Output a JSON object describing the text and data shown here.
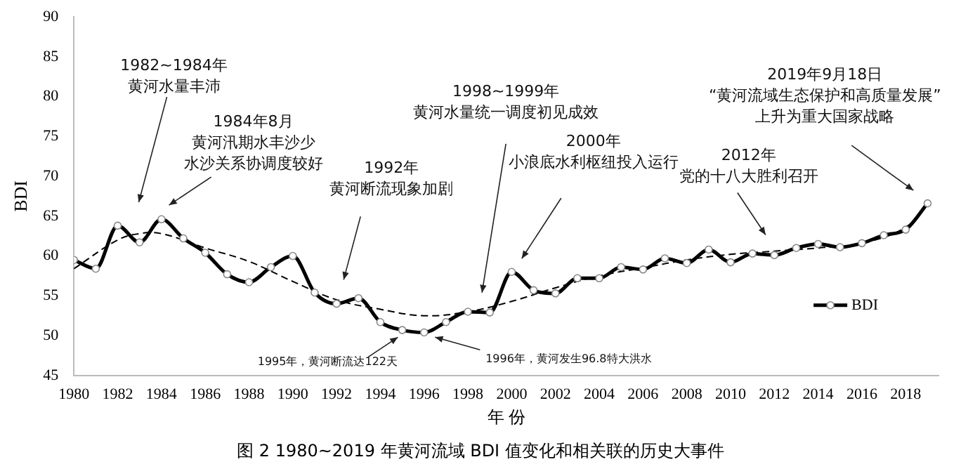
{
  "chart_data": {
    "type": "line",
    "title": "图 2 1980~2019 年黄河流域 BDI 值变化和相关联的历史大事件",
    "xlabel": "年 份",
    "ylabel": "BDI",
    "x": [
      1980,
      1981,
      1982,
      1983,
      1984,
      1985,
      1986,
      1987,
      1988,
      1989,
      1990,
      1991,
      1992,
      1993,
      1994,
      1995,
      1996,
      1997,
      1998,
      1999,
      2000,
      2001,
      2002,
      2003,
      2004,
      2005,
      2006,
      2007,
      2008,
      2009,
      2010,
      2011,
      2012,
      2013,
      2014,
      2015,
      2016,
      2017,
      2018,
      2019
    ],
    "series": [
      {
        "name": "BDI",
        "color": "#000000",
        "marker": "circle",
        "line_style": "solid",
        "values": [
          59.5,
          58.4,
          63.8,
          61.7,
          64.6,
          62.2,
          60.4,
          57.7,
          56.7,
          58.6,
          60.0,
          55.4,
          54.0,
          54.7,
          51.7,
          50.7,
          50.4,
          51.7,
          53.0,
          52.9,
          58.0,
          55.7,
          55.3,
          57.2,
          57.2,
          58.6,
          58.3,
          59.7,
          59.1,
          60.8,
          59.2,
          60.3,
          60.1,
          61.0,
          61.5,
          61.1,
          61.6,
          62.6,
          63.3,
          66.6
        ]
      },
      {
        "type": "line",
        "color": "#000000",
        "marker": "none",
        "line_style": "dashed",
        "x": [
          1980,
          1982,
          1983,
          1984,
          1986,
          1988,
          1990,
          1992,
          1994,
          1996,
          1998,
          2000,
          2002,
          2004,
          2006,
          2008,
          2010,
          2012,
          2014,
          2016,
          2018,
          2019
        ],
        "values": [
          58.4,
          62.0,
          62.8,
          62.8,
          61.0,
          59.3,
          56.8,
          54.5,
          53.3,
          52.5,
          53.0,
          54.3,
          56.0,
          57.5,
          58.5,
          59.5,
          60.2,
          60.6,
          61.0,
          61.6,
          63.6,
          66.6
        ]
      }
    ],
    "xlim": [
      1980,
      2019.5
    ],
    "xticks": [
      1980,
      1982,
      1984,
      1986,
      1988,
      1990,
      1992,
      1994,
      1996,
      1998,
      2000,
      2002,
      2004,
      2006,
      2008,
      2010,
      2012,
      2014,
      2016,
      2018
    ],
    "ylim": [
      45,
      90
    ],
    "yticks": [
      45,
      50,
      55,
      60,
      65,
      70,
      75,
      80,
      85,
      90
    ],
    "grid": false,
    "legend": "bottom right",
    "annotations": [
      "1982~1984年黄河水量丰沛",
      "1984年8月黄河汛期水丰沙少水沙关系协调度较好",
      "1992年黄河断流现象加剧",
      "1998~1999年黄河水量统一调度初见成效",
      "2000年小浪底水利枢纽投入运行",
      "2012年党的十八大胜利召开",
      "2019年9月18日“黄河流域生态保护和高质量发展”上升为重大国家战略",
      {
        "text": "1995年，黄河断流达122天",
        "x": 1994.8,
        "y": 49.8
      },
      {
        "text": "1996年，黄河发生96.8特大洪水",
        "x": 1996.5,
        "y": 49.8
      }
    ]
  }
}
